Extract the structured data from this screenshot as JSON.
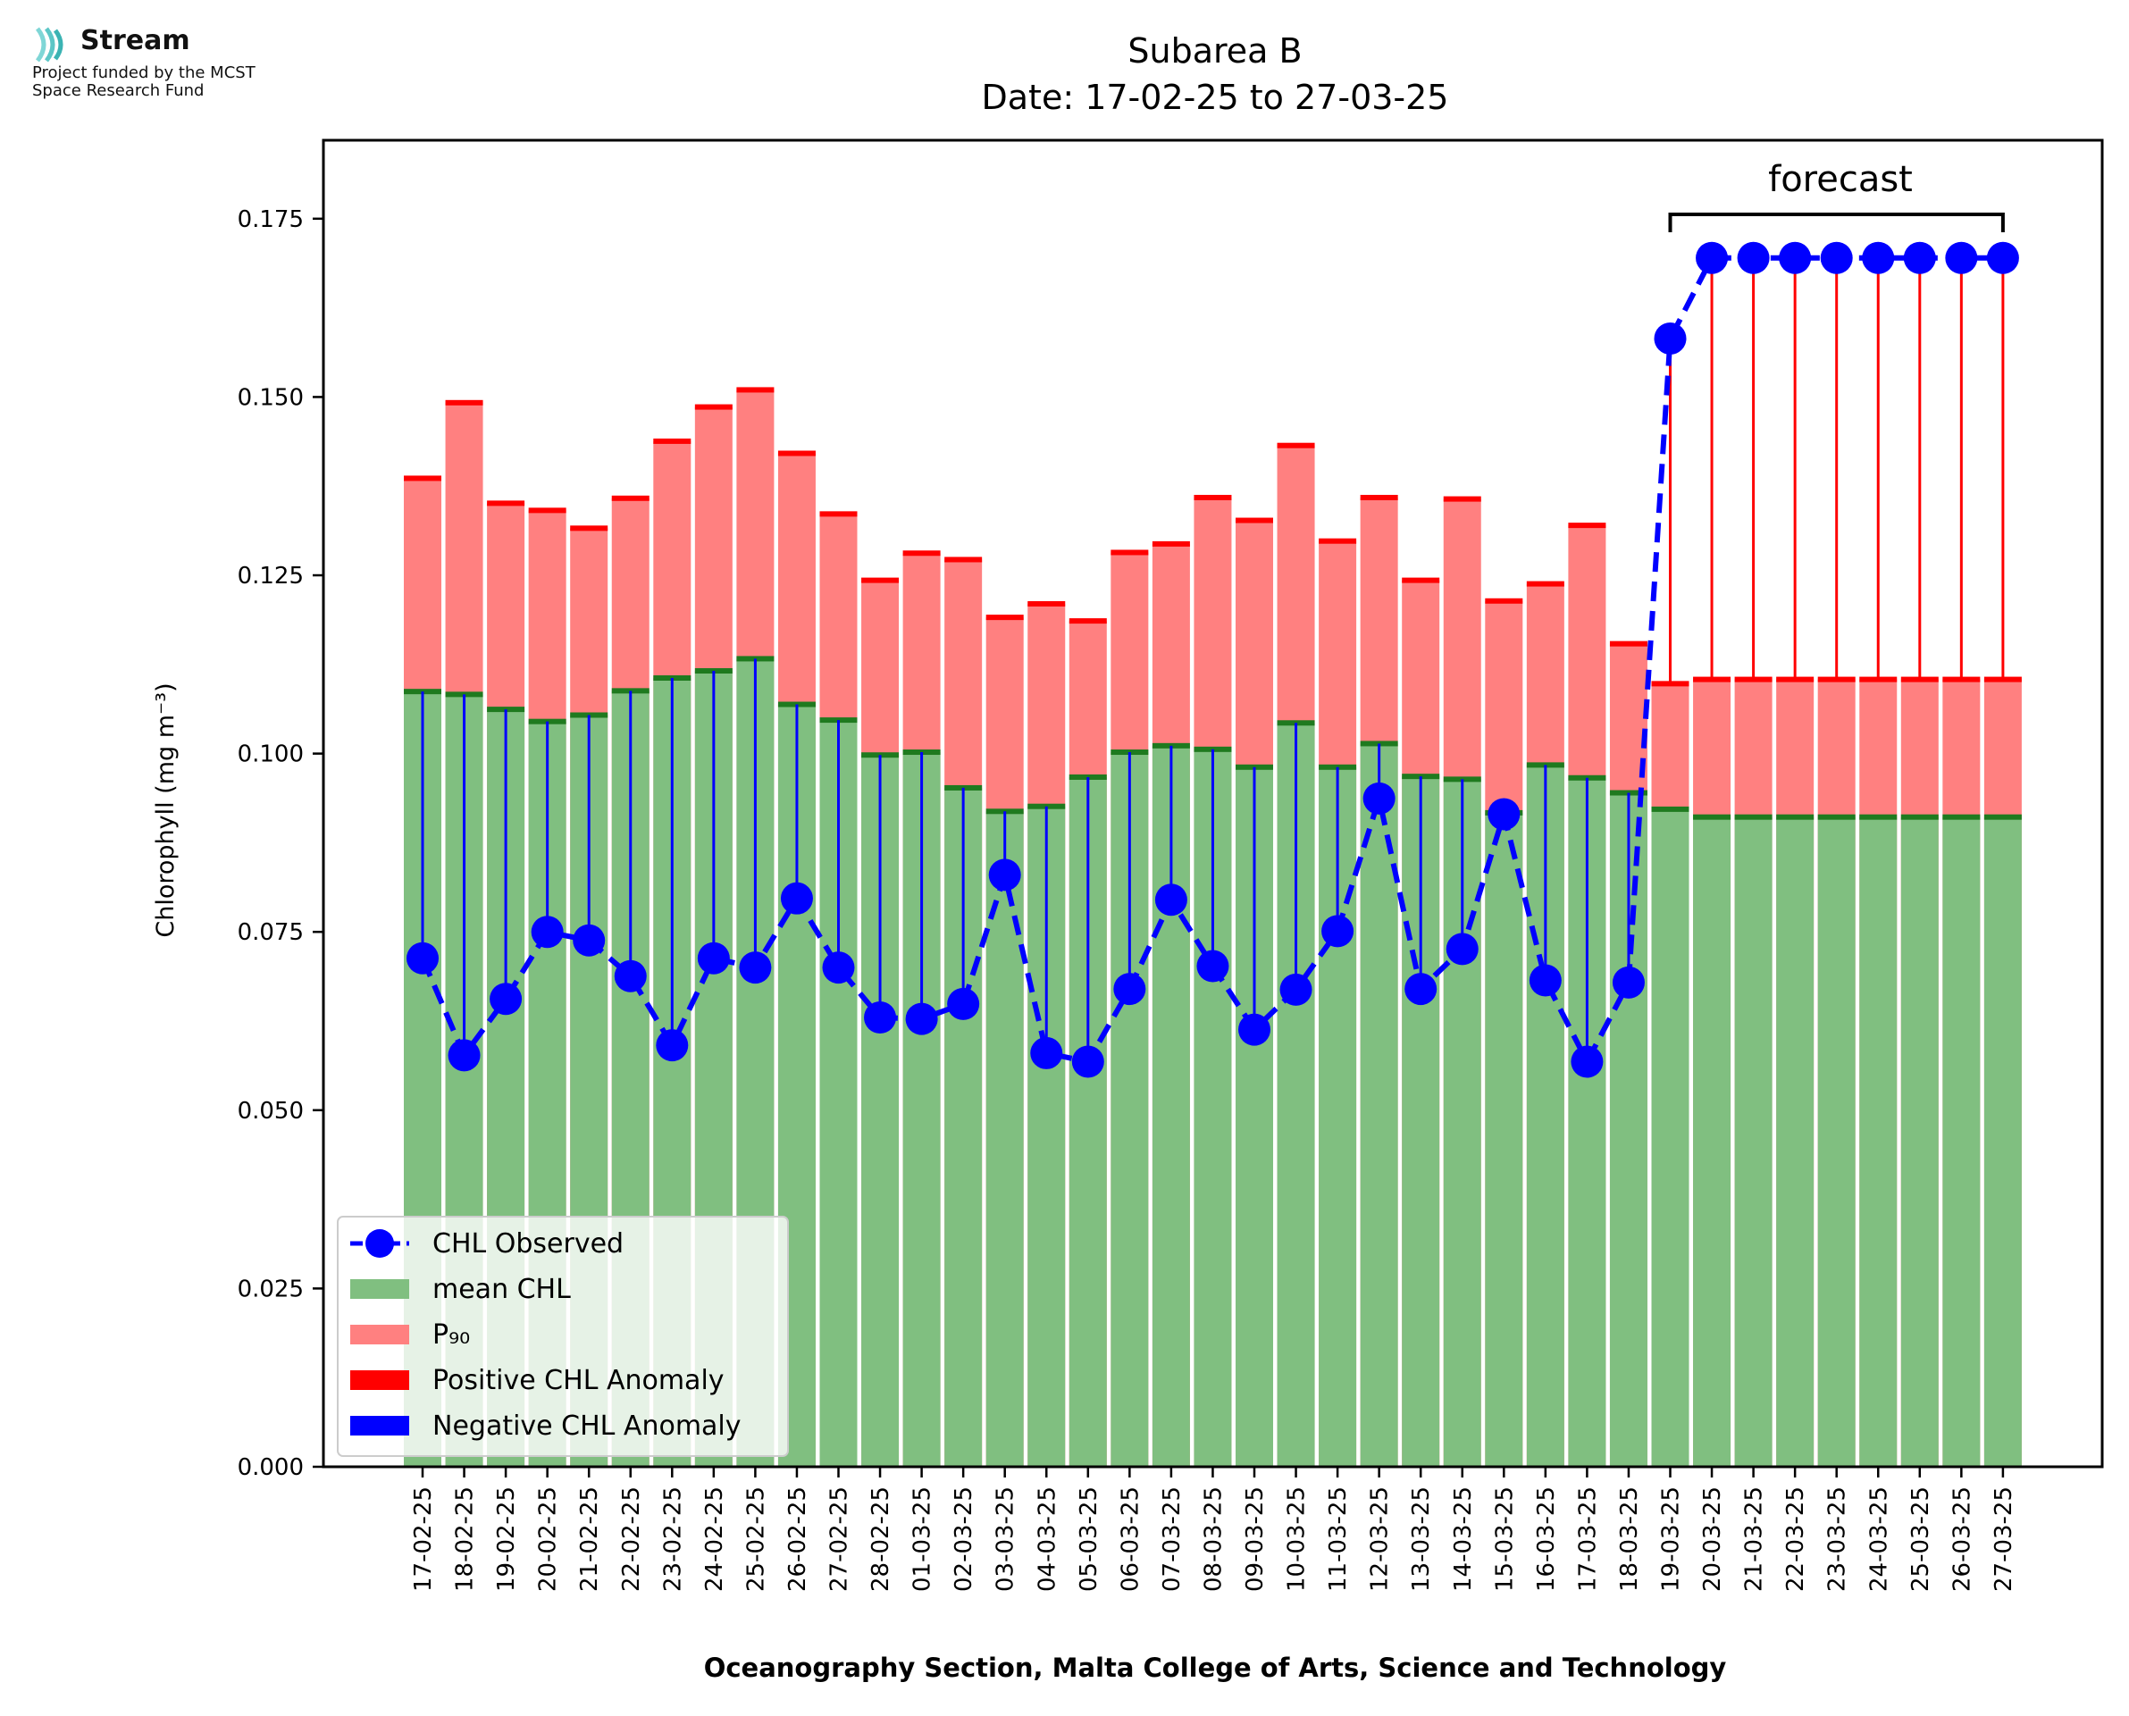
{
  "logo": {
    "name": "Stream",
    "tagline_line1": "Project funded by the MCST",
    "tagline_line2": "Space Research Fund"
  },
  "chart_data": {
    "type": "bar",
    "title_line1": "Subarea B",
    "title_line2": "Date: 17-02-25 to 27-03-25",
    "xlabel": "Oceanography Section, Malta College of Arts, Science and Technology",
    "ylabel": "Chlorophyll (mg m⁻³)",
    "ylim": [
      0,
      0.186
    ],
    "yticks": [
      "0.000",
      "0.025",
      "0.050",
      "0.075",
      "0.100",
      "0.125",
      "0.150",
      "0.175"
    ],
    "annotation": "forecast",
    "forecast_start_index": 30,
    "legend_position": "lower-left",
    "categories": [
      "17-02-25",
      "18-02-25",
      "19-02-25",
      "20-02-25",
      "21-02-25",
      "22-02-25",
      "23-02-25",
      "24-02-25",
      "25-02-25",
      "26-02-25",
      "27-02-25",
      "28-02-25",
      "01-03-25",
      "02-03-25",
      "03-03-25",
      "04-03-25",
      "05-03-25",
      "06-03-25",
      "07-03-25",
      "08-03-25",
      "09-03-25",
      "10-03-25",
      "11-03-25",
      "12-03-25",
      "13-03-25",
      "14-03-25",
      "15-03-25",
      "16-03-25",
      "17-03-25",
      "18-03-25",
      "19-03-25",
      "20-03-25",
      "21-03-25",
      "22-03-25",
      "23-03-25",
      "24-03-25",
      "25-03-25",
      "26-03-25",
      "27-03-25"
    ],
    "series": [
      {
        "name": "CHL Observed",
        "color": "#0000ff",
        "values": [
          0.0713,
          0.0577,
          0.0656,
          0.075,
          0.0738,
          0.0688,
          0.0591,
          0.0713,
          0.07,
          0.0797,
          0.07,
          0.063,
          0.0628,
          0.0649,
          0.083,
          0.058,
          0.0568,
          0.067,
          0.0795,
          0.0702,
          0.0613,
          0.0669,
          0.0751,
          0.0937,
          0.067,
          0.0726,
          0.0915,
          0.0682,
          0.0568,
          0.0679,
          0.1582,
          0.1695,
          0.1695,
          0.1695,
          0.1695,
          0.1695,
          0.1695,
          0.1695,
          0.1695
        ]
      },
      {
        "name": "mean CHL",
        "color": "#80bf80",
        "values": [
          0.1087,
          0.1083,
          0.1062,
          0.1045,
          0.1054,
          0.1088,
          0.1106,
          0.1116,
          0.1133,
          0.1069,
          0.1047,
          0.0998,
          0.1002,
          0.0952,
          0.0919,
          0.0926,
          0.0967,
          0.1002,
          0.1011,
          0.1006,
          0.0981,
          0.1043,
          0.0981,
          0.1014,
          0.0968,
          0.0964,
          0.0917,
          0.0984,
          0.0966,
          0.0945,
          0.0922,
          0.0911,
          0.0911,
          0.0911,
          0.0911,
          0.0911,
          0.0911,
          0.0911,
          0.0911
        ]
      },
      {
        "name": "P₉₀",
        "color": "#ff8080",
        "values": [
          0.1386,
          0.1492,
          0.1351,
          0.1341,
          0.1316,
          0.1358,
          0.1438,
          0.1486,
          0.151,
          0.1421,
          0.1336,
          0.1243,
          0.1281,
          0.1272,
          0.1191,
          0.121,
          0.1186,
          0.1282,
          0.1294,
          0.1359,
          0.1327,
          0.1432,
          0.1298,
          0.1359,
          0.1243,
          0.1357,
          0.1214,
          0.1238,
          0.132,
          0.1154,
          0.1098,
          0.1104,
          0.1104,
          0.1104,
          0.1104,
          0.1104,
          0.1104,
          0.1104,
          0.1104
        ]
      }
    ],
    "legend": [
      {
        "label": "CHL Observed",
        "kind": "line-marker",
        "color": "#0000ff"
      },
      {
        "label": "mean CHL",
        "kind": "patch",
        "color": "#80bf80"
      },
      {
        "label": "P₉₀",
        "kind": "patch",
        "color": "#ff8080"
      },
      {
        "label": "Positive CHL Anomaly",
        "kind": "patch",
        "color": "#ff0000"
      },
      {
        "label": "Negative CHL Anomaly",
        "kind": "patch",
        "color": "#0000ff"
      }
    ],
    "colors": {
      "mean_cap": "#1f7a1f",
      "p90_cap": "#ff0000",
      "positive_anomaly": "#ff0000",
      "negative_anomaly": "#0000ff"
    }
  }
}
